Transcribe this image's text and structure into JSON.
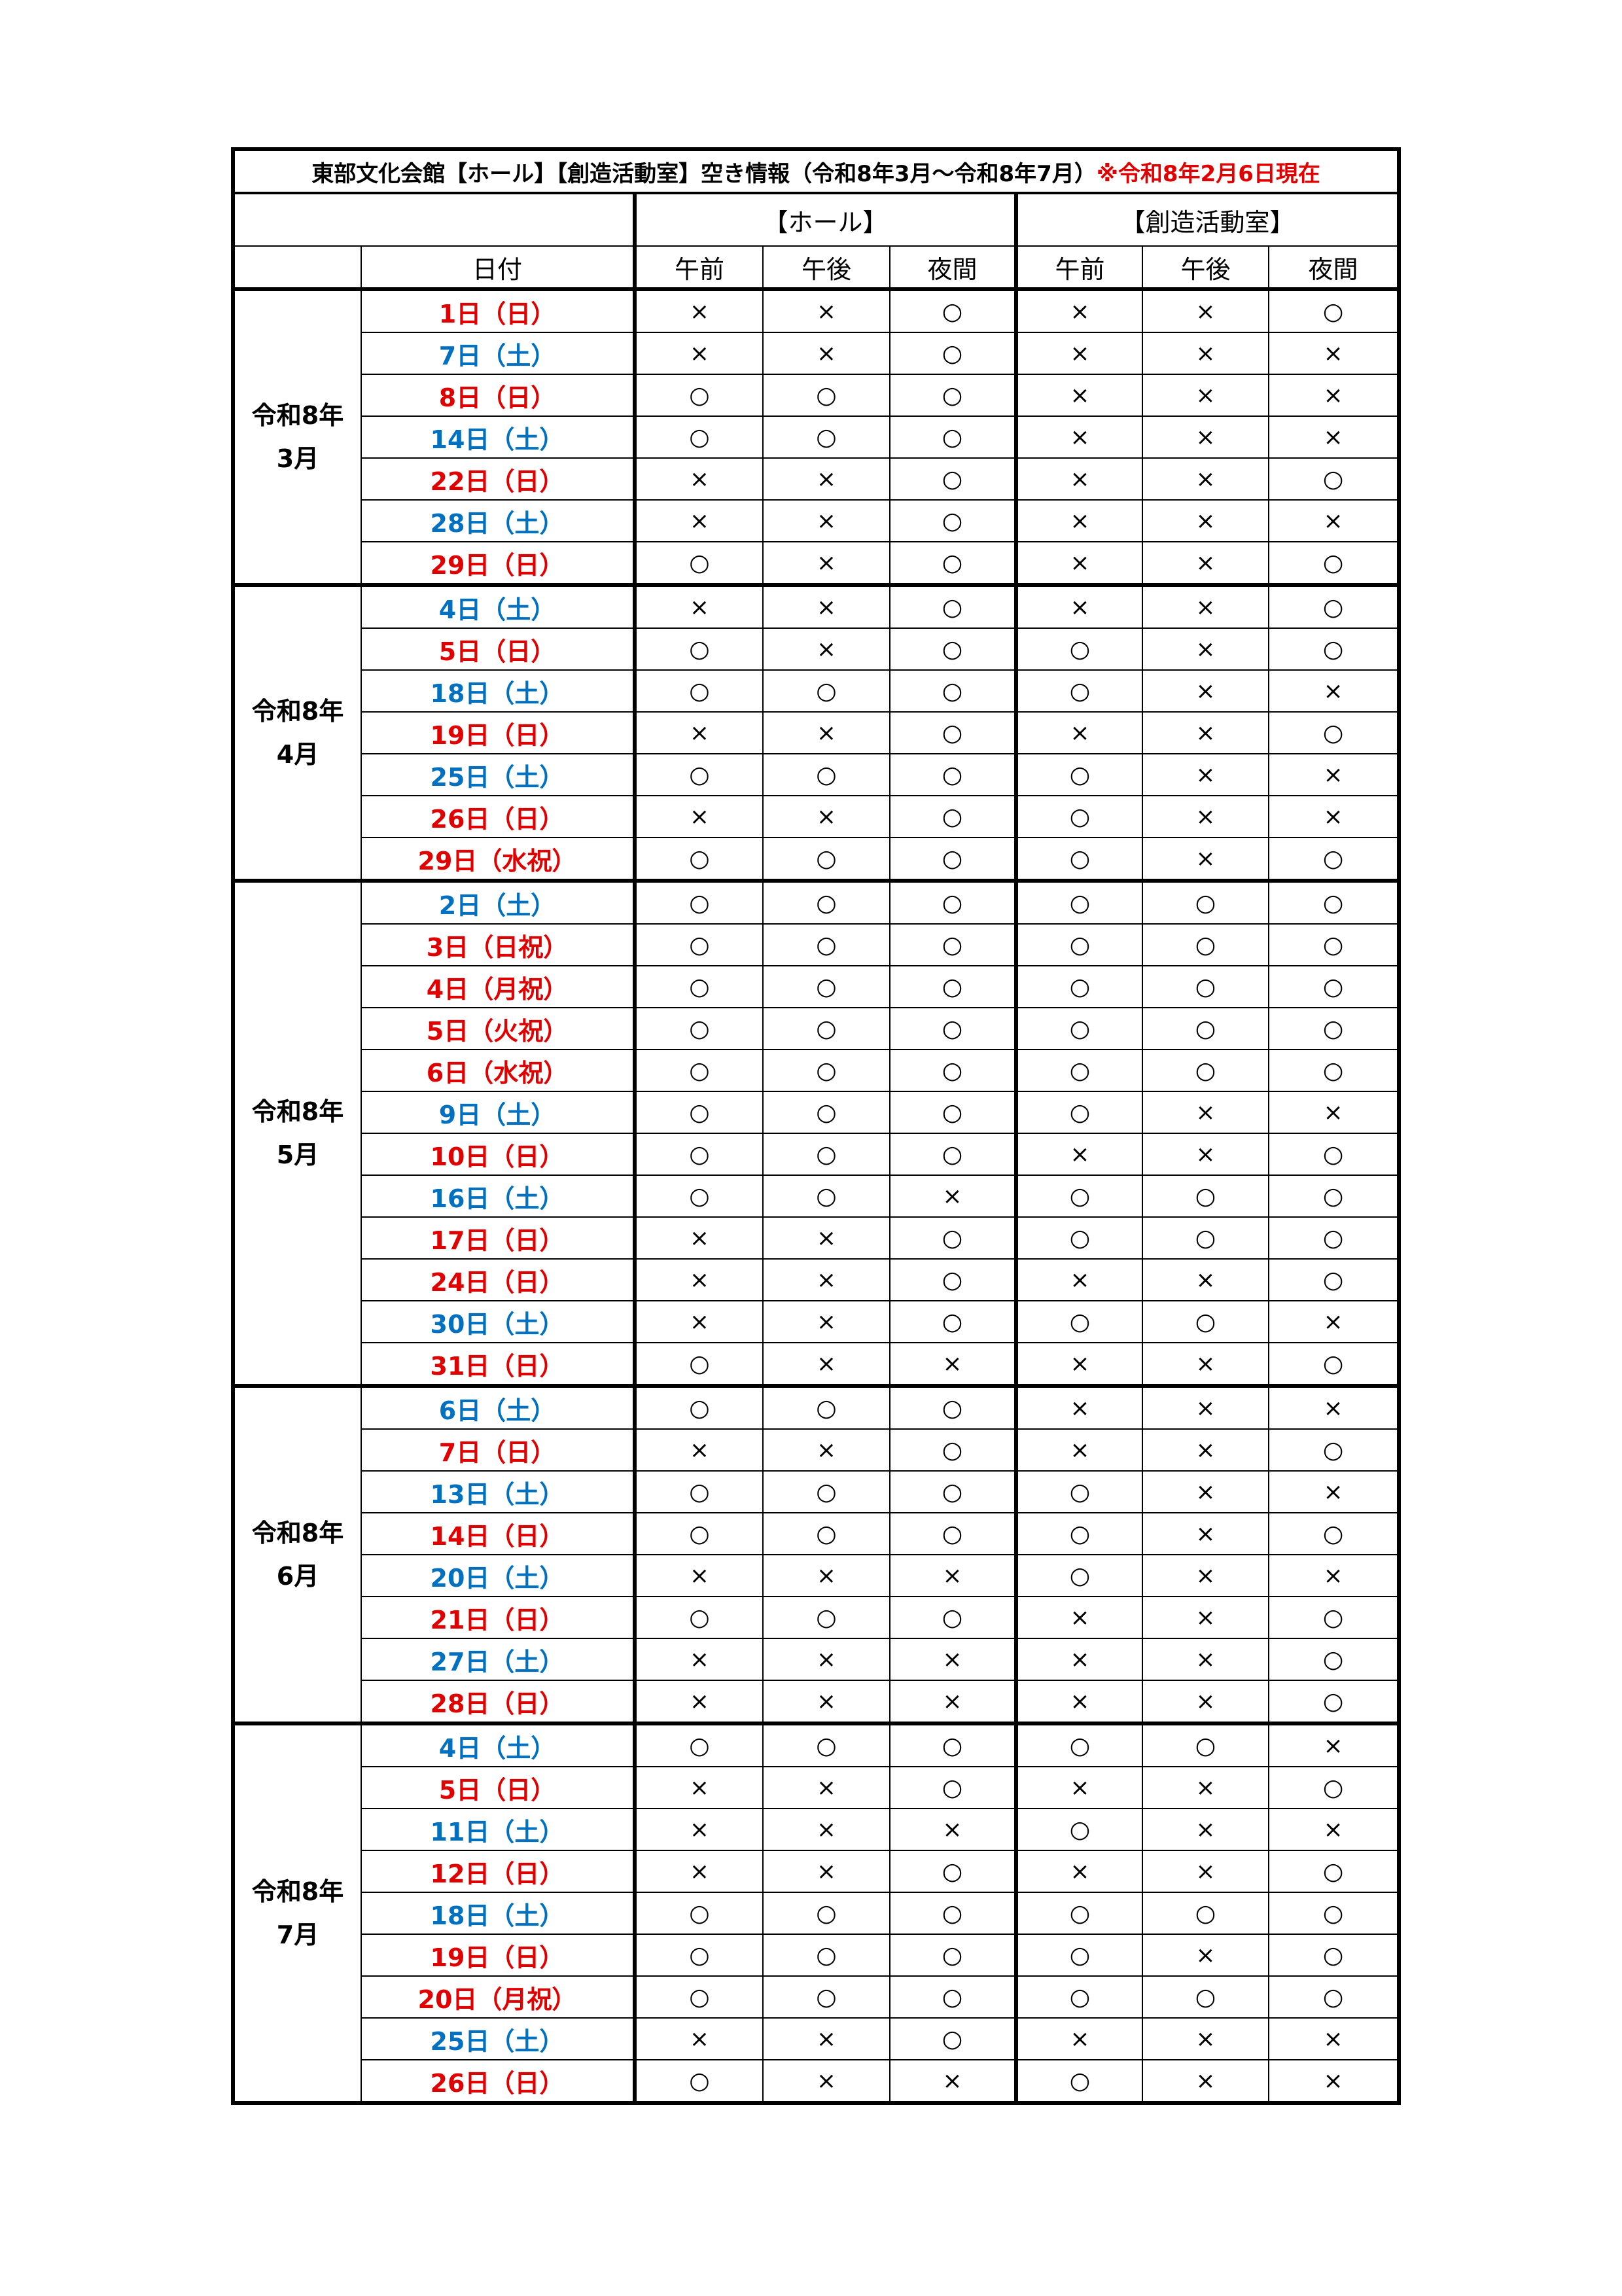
{
  "title": {
    "main": "東部文化会館【ホール】【創造活動室】空き情報（令和8年3月～令和8年7月）",
    "note": "※令和8年2月6日現在"
  },
  "headers": {
    "hall": "【ホール】",
    "room": "【創造活動室】",
    "date": "日付",
    "slots": [
      "午前",
      "午後",
      "夜間"
    ]
  },
  "day_colors": {
    "sun": "#e00000",
    "sat": "#0070c0"
  },
  "months": [
    {
      "label": [
        "令和8年",
        "3月"
      ],
      "rows": [
        {
          "date": "1日（日）",
          "day": "sun",
          "hall": [
            "×",
            "×",
            "○"
          ],
          "room": [
            "×",
            "×",
            "○"
          ]
        },
        {
          "date": "7日（土）",
          "day": "sat",
          "hall": [
            "×",
            "×",
            "○"
          ],
          "room": [
            "×",
            "×",
            "×"
          ]
        },
        {
          "date": "8日（日）",
          "day": "sun",
          "hall": [
            "○",
            "○",
            "○"
          ],
          "room": [
            "×",
            "×",
            "×"
          ]
        },
        {
          "date": "14日（土）",
          "day": "sat",
          "hall": [
            "○",
            "○",
            "○"
          ],
          "room": [
            "×",
            "×",
            "×"
          ]
        },
        {
          "date": "22日（日）",
          "day": "sun",
          "hall": [
            "×",
            "×",
            "○"
          ],
          "room": [
            "×",
            "×",
            "○"
          ]
        },
        {
          "date": "28日（土）",
          "day": "sat",
          "hall": [
            "×",
            "×",
            "○"
          ],
          "room": [
            "×",
            "×",
            "×"
          ]
        },
        {
          "date": "29日（日）",
          "day": "sun",
          "hall": [
            "○",
            "×",
            "○"
          ],
          "room": [
            "×",
            "×",
            "○"
          ]
        }
      ]
    },
    {
      "label": [
        "令和8年",
        "4月"
      ],
      "rows": [
        {
          "date": "4日（土）",
          "day": "sat",
          "hall": [
            "×",
            "×",
            "○"
          ],
          "room": [
            "×",
            "×",
            "○"
          ]
        },
        {
          "date": "5日（日）",
          "day": "sun",
          "hall": [
            "○",
            "×",
            "○"
          ],
          "room": [
            "○",
            "×",
            "○"
          ]
        },
        {
          "date": "18日（土）",
          "day": "sat",
          "hall": [
            "○",
            "○",
            "○"
          ],
          "room": [
            "○",
            "×",
            "×"
          ]
        },
        {
          "date": "19日（日）",
          "day": "sun",
          "hall": [
            "×",
            "×",
            "○"
          ],
          "room": [
            "×",
            "×",
            "○"
          ]
        },
        {
          "date": "25日（土）",
          "day": "sat",
          "hall": [
            "○",
            "○",
            "○"
          ],
          "room": [
            "○",
            "×",
            "×"
          ]
        },
        {
          "date": "26日（日）",
          "day": "sun",
          "hall": [
            "×",
            "×",
            "○"
          ],
          "room": [
            "○",
            "×",
            "×"
          ]
        },
        {
          "date": "29日（水祝）",
          "day": "sun",
          "hall": [
            "○",
            "○",
            "○"
          ],
          "room": [
            "○",
            "×",
            "○"
          ]
        }
      ]
    },
    {
      "label": [
        "令和8年",
        "5月"
      ],
      "rows": [
        {
          "date": "2日（土）",
          "day": "sat",
          "hall": [
            "○",
            "○",
            "○"
          ],
          "room": [
            "○",
            "○",
            "○"
          ]
        },
        {
          "date": "3日（日祝）",
          "day": "sun",
          "hall": [
            "○",
            "○",
            "○"
          ],
          "room": [
            "○",
            "○",
            "○"
          ]
        },
        {
          "date": "4日（月祝）",
          "day": "sun",
          "hall": [
            "○",
            "○",
            "○"
          ],
          "room": [
            "○",
            "○",
            "○"
          ]
        },
        {
          "date": "5日（火祝）",
          "day": "sun",
          "hall": [
            "○",
            "○",
            "○"
          ],
          "room": [
            "○",
            "○",
            "○"
          ]
        },
        {
          "date": "6日（水祝）",
          "day": "sun",
          "hall": [
            "○",
            "○",
            "○"
          ],
          "room": [
            "○",
            "○",
            "○"
          ]
        },
        {
          "date": "9日（土）",
          "day": "sat",
          "hall": [
            "○",
            "○",
            "○"
          ],
          "room": [
            "○",
            "×",
            "×"
          ]
        },
        {
          "date": "10日（日）",
          "day": "sun",
          "hall": [
            "○",
            "○",
            "○"
          ],
          "room": [
            "×",
            "×",
            "○"
          ]
        },
        {
          "date": "16日（土）",
          "day": "sat",
          "hall": [
            "○",
            "○",
            "×"
          ],
          "room": [
            "○",
            "○",
            "○"
          ]
        },
        {
          "date": "17日（日）",
          "day": "sun",
          "hall": [
            "×",
            "×",
            "○"
          ],
          "room": [
            "○",
            "○",
            "○"
          ]
        },
        {
          "date": "24日（日）",
          "day": "sun",
          "hall": [
            "×",
            "×",
            "○"
          ],
          "room": [
            "×",
            "×",
            "○"
          ]
        },
        {
          "date": "30日（土）",
          "day": "sat",
          "hall": [
            "×",
            "×",
            "○"
          ],
          "room": [
            "○",
            "○",
            "×"
          ]
        },
        {
          "date": "31日（日）",
          "day": "sun",
          "hall": [
            "○",
            "×",
            "×"
          ],
          "room": [
            "×",
            "×",
            "○"
          ]
        }
      ]
    },
    {
      "label": [
        "令和8年",
        "6月"
      ],
      "rows": [
        {
          "date": "6日（土）",
          "day": "sat",
          "hall": [
            "○",
            "○",
            "○"
          ],
          "room": [
            "×",
            "×",
            "×"
          ]
        },
        {
          "date": "7日（日）",
          "day": "sun",
          "hall": [
            "×",
            "×",
            "○"
          ],
          "room": [
            "×",
            "×",
            "○"
          ]
        },
        {
          "date": "13日（土）",
          "day": "sat",
          "hall": [
            "○",
            "○",
            "○"
          ],
          "room": [
            "○",
            "×",
            "×"
          ]
        },
        {
          "date": "14日（日）",
          "day": "sun",
          "hall": [
            "○",
            "○",
            "○"
          ],
          "room": [
            "○",
            "×",
            "○"
          ]
        },
        {
          "date": "20日（土）",
          "day": "sat",
          "hall": [
            "×",
            "×",
            "×"
          ],
          "room": [
            "○",
            "×",
            "×"
          ]
        },
        {
          "date": "21日（日）",
          "day": "sun",
          "hall": [
            "○",
            "○",
            "○"
          ],
          "room": [
            "×",
            "×",
            "○"
          ]
        },
        {
          "date": "27日（土）",
          "day": "sat",
          "hall": [
            "×",
            "×",
            "×"
          ],
          "room": [
            "×",
            "×",
            "○"
          ]
        },
        {
          "date": "28日（日）",
          "day": "sun",
          "hall": [
            "×",
            "×",
            "×"
          ],
          "room": [
            "×",
            "×",
            "○"
          ]
        }
      ]
    },
    {
      "label": [
        "令和8年",
        "7月"
      ],
      "rows": [
        {
          "date": "4日（土）",
          "day": "sat",
          "hall": [
            "○",
            "○",
            "○"
          ],
          "room": [
            "○",
            "○",
            "×"
          ]
        },
        {
          "date": "5日（日）",
          "day": "sun",
          "hall": [
            "×",
            "×",
            "○"
          ],
          "room": [
            "×",
            "×",
            "○"
          ]
        },
        {
          "date": "11日（土）",
          "day": "sat",
          "hall": [
            "×",
            "×",
            "×"
          ],
          "room": [
            "○",
            "×",
            "×"
          ]
        },
        {
          "date": "12日（日）",
          "day": "sun",
          "hall": [
            "×",
            "×",
            "○"
          ],
          "room": [
            "×",
            "×",
            "○"
          ]
        },
        {
          "date": "18日（土）",
          "day": "sat",
          "hall": [
            "○",
            "○",
            "○"
          ],
          "room": [
            "○",
            "○",
            "○"
          ]
        },
        {
          "date": "19日（日）",
          "day": "sun",
          "hall": [
            "○",
            "○",
            "○"
          ],
          "room": [
            "○",
            "×",
            "○"
          ]
        },
        {
          "date": "20日（月祝）",
          "day": "sun",
          "hall": [
            "○",
            "○",
            "○"
          ],
          "room": [
            "○",
            "○",
            "○"
          ]
        },
        {
          "date": "25日（土）",
          "day": "sat",
          "hall": [
            "×",
            "×",
            "○"
          ],
          "room": [
            "×",
            "×",
            "×"
          ]
        },
        {
          "date": "26日（日）",
          "day": "sun",
          "hall": [
            "○",
            "×",
            "×"
          ],
          "room": [
            "○",
            "×",
            "×"
          ]
        }
      ]
    }
  ]
}
